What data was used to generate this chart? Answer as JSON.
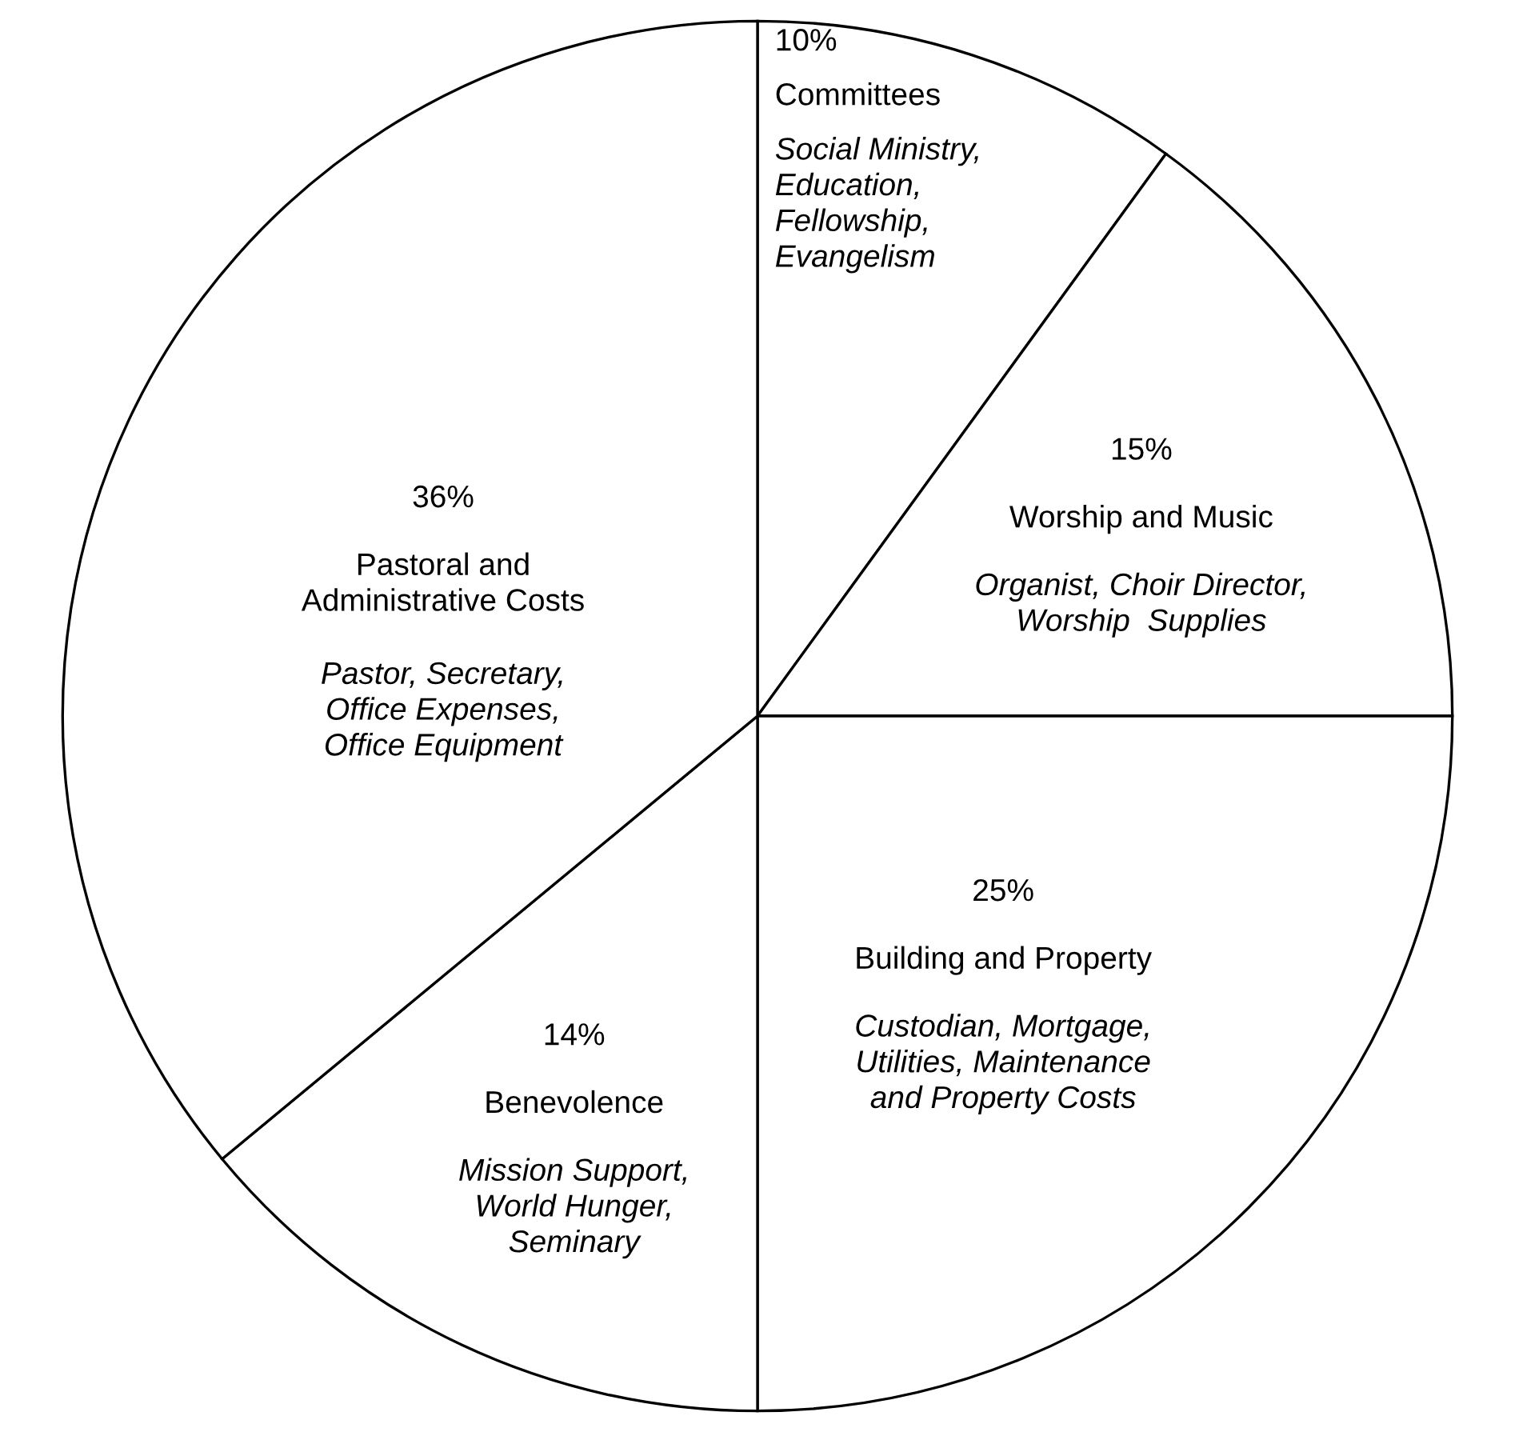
{
  "chart_data": {
    "type": "pie",
    "categories": [
      "Committees",
      "Worship and Music",
      "Building and Property",
      "Benevolence",
      "Pastoral and\nAdministrative Costs"
    ],
    "values": [
      10,
      15,
      25,
      14,
      36
    ],
    "value_labels": [
      "10%",
      "15%",
      "25%",
      "14%",
      "36%"
    ],
    "colors": [
      "#ffffff",
      "#ffffff",
      "#ffffff",
      "#ffffff",
      "#ffffff"
    ],
    "annotations": [
      "Social Ministry,\nEducation,\nFellowship,\nEvangelism",
      "Organist, Choir Director,\nWorship  Supplies",
      "Custodian, Mortgage,\nUtilities, Maintenance\nand Property Costs",
      "Mission Support,\nWorld Hunger,\nSeminary",
      "Pastor, Secretary,\nOffice Expenses,\nOffice Equipment"
    ]
  }
}
